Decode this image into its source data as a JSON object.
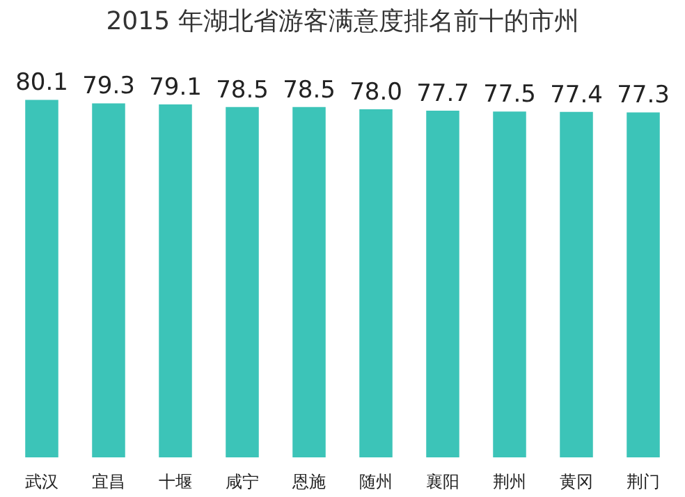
{
  "chart_data": {
    "type": "bar",
    "title": "2015 年湖北省游客满意度排名前十的市州",
    "categories": [
      "武汉",
      "宜昌",
      "十堰",
      "咸宁",
      "恩施",
      "随州",
      "襄阳",
      "荆州",
      "黄冈",
      "荆门"
    ],
    "values": [
      80.1,
      79.3,
      79.1,
      78.5,
      78.5,
      78.0,
      77.7,
      77.5,
      77.4,
      77.3
    ],
    "value_labels": [
      "80.1",
      "79.3",
      "79.1",
      "78.5",
      "78.5",
      "78.0",
      "77.7",
      "77.5",
      "77.4",
      "77.3"
    ],
    "color": "#3cc4b8",
    "grid": false,
    "legend": false,
    "tick_labels": "x"
  }
}
